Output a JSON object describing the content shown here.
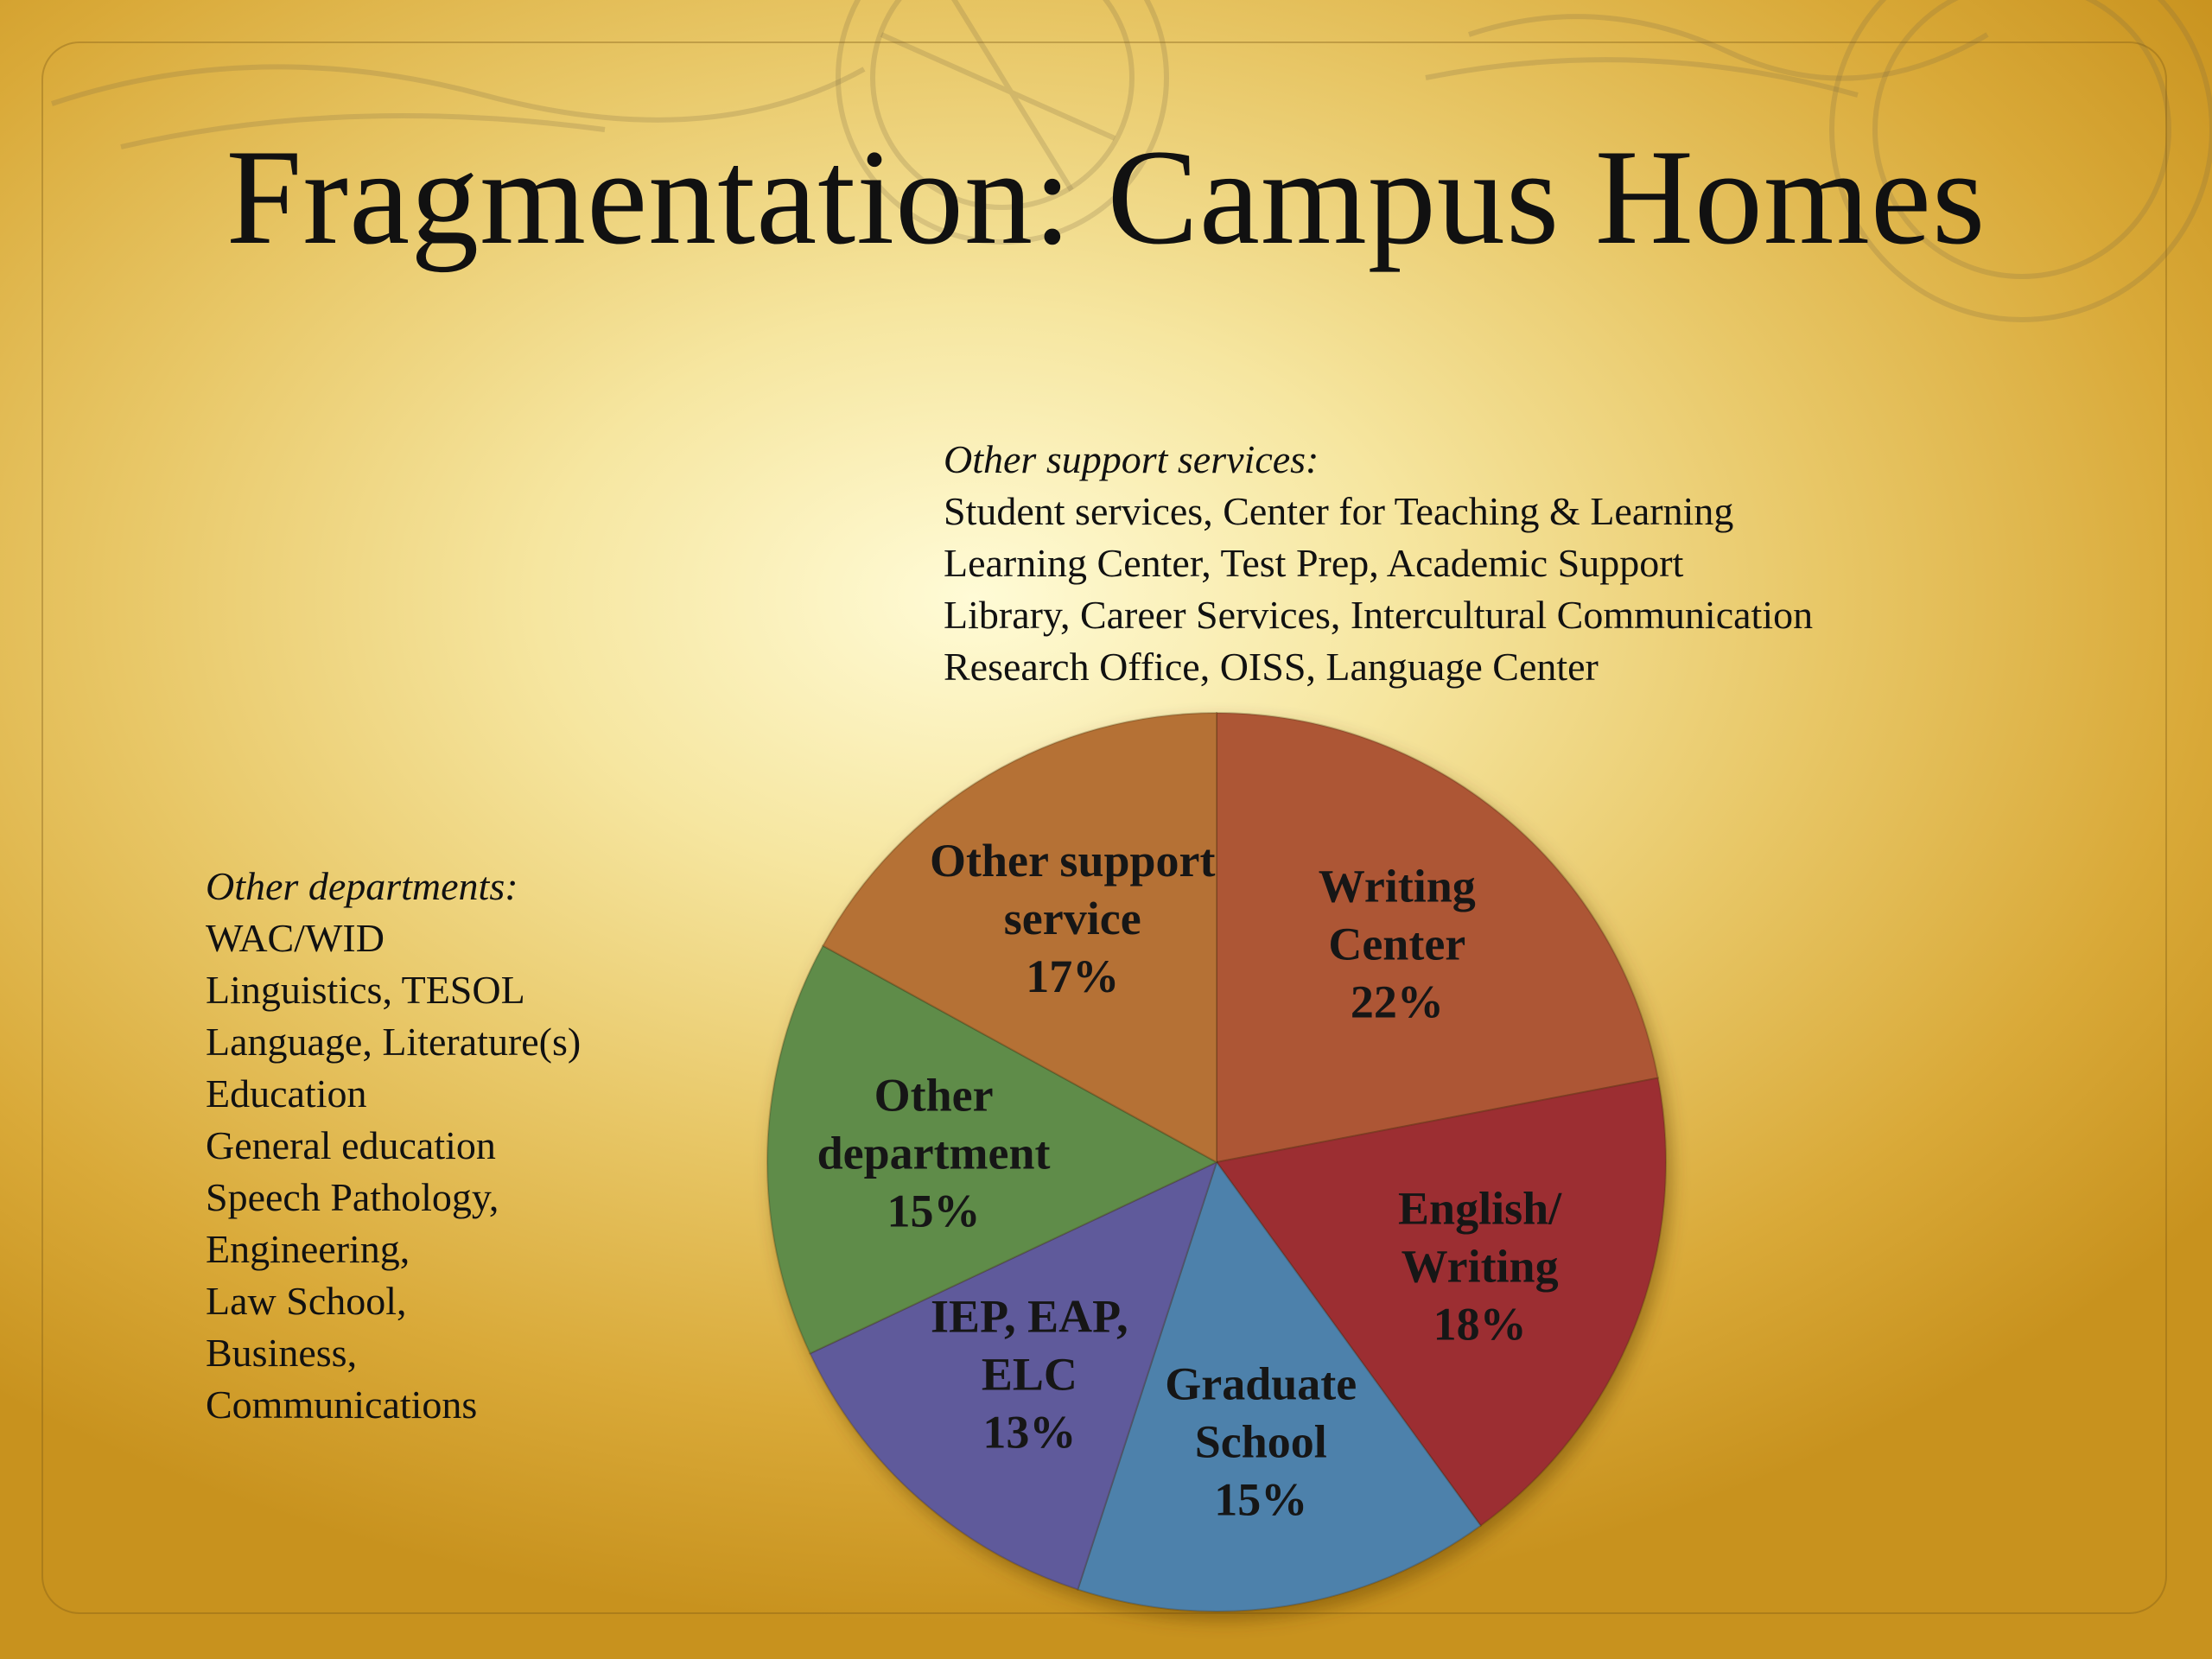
{
  "slide": {
    "title": "Fragmentation: Campus Homes"
  },
  "notes": {
    "support": {
      "heading": "Other support services:",
      "lines": [
        "Student services, Center for Teaching & Learning",
        "Learning Center, Test Prep, Academic Support",
        "Library, Career Services, Intercultural Communication",
        "Research Office, OISS, Language Center"
      ]
    },
    "departments": {
      "heading": "Other departments:",
      "lines": [
        "WAC/WID",
        "Linguistics, TESOL",
        "Language, Literature(s)",
        "Education",
        "General education",
        "Speech Pathology,",
        "Engineering,",
        "Law School,",
        "Business,",
        "Communications"
      ]
    }
  },
  "chart_data": {
    "type": "pie",
    "title": "",
    "start": "12 o'clock, clockwise",
    "slices": [
      {
        "label": [
          "Writing",
          "Center"
        ],
        "value": 22,
        "display": "22%",
        "color": "#ad5634"
      },
      {
        "label": [
          "English/",
          "Writing"
        ],
        "value": 18,
        "display": "18%",
        "color": "#9c2f32"
      },
      {
        "label": [
          "Graduate",
          "School"
        ],
        "value": 15,
        "display": "15%",
        "color": "#4e81ab"
      },
      {
        "label": [
          "IEP, EAP,",
          "ELC"
        ],
        "value": 13,
        "display": "13%",
        "color": "#5f5a9b"
      },
      {
        "label": [
          "Other",
          "department"
        ],
        "value": 15,
        "display": "15%",
        "color": "#5f8c4a"
      },
      {
        "label": [
          "Other support",
          "service"
        ],
        "value": 17,
        "display": "17%",
        "color": "#b57134"
      }
    ]
  }
}
